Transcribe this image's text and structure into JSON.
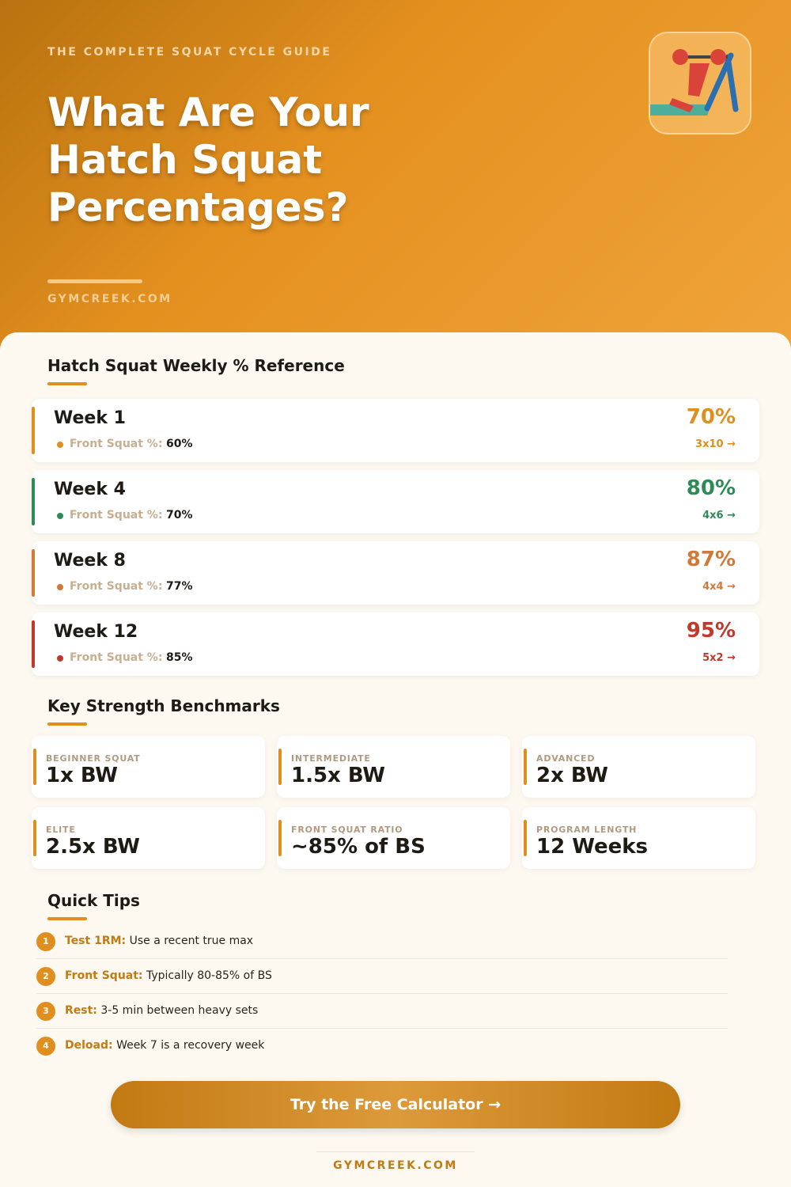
{
  "header": {
    "kicker": "THE COMPLETE SQUAT CYCLE GUIDE",
    "title": "What Are Your Hatch Squat Percentages?",
    "site": "GYMCREEK.COM"
  },
  "weekly": {
    "heading": "Hatch Squat Weekly % Reference",
    "weeks": [
      {
        "label": "Week 1",
        "sub_label": "Front Squat %:",
        "sub_value": "60%",
        "percent": "70%",
        "scheme": "3x10 →",
        "color": "#e08e1e"
      },
      {
        "label": "Week 4",
        "sub_label": "Front Squat %:",
        "sub_value": "70%",
        "percent": "80%",
        "scheme": "4x6 →",
        "color": "#2e8b57"
      },
      {
        "label": "Week 8",
        "sub_label": "Front Squat %:",
        "sub_value": "77%",
        "percent": "87%",
        "scheme": "4x4 →",
        "color": "#d2793a"
      },
      {
        "label": "Week 12",
        "sub_label": "Front Squat %:",
        "sub_value": "85%",
        "percent": "95%",
        "scheme": "5x2 →",
        "color": "#c0392b"
      }
    ]
  },
  "benchmarks": {
    "heading": "Key Strength Benchmarks",
    "items": [
      {
        "label": "BEGINNER SQUAT",
        "value": "1x BW"
      },
      {
        "label": "INTERMEDIATE",
        "value": "1.5x BW"
      },
      {
        "label": "ADVANCED",
        "value": "2x BW"
      },
      {
        "label": "ELITE",
        "value": "2.5x BW"
      },
      {
        "label": "FRONT SQUAT RATIO",
        "value": "~85% of BS"
      },
      {
        "label": "PROGRAM LENGTH",
        "value": "12 Weeks"
      }
    ]
  },
  "tips": {
    "heading": "Quick Tips",
    "items": [
      {
        "number": "1",
        "term": "Test 1RM:",
        "text": "Use a recent true max"
      },
      {
        "number": "2",
        "term": "Front Squat:",
        "text": "Typically 80-85% of BS"
      },
      {
        "number": "3",
        "term": "Rest:",
        "text": "3-5 min between heavy sets"
      },
      {
        "number": "4",
        "term": "Deload:",
        "text": "Week 7 is a recovery week"
      }
    ]
  },
  "cta": "Try the Free Calculator →",
  "footer": "GYMCREEK.COM"
}
